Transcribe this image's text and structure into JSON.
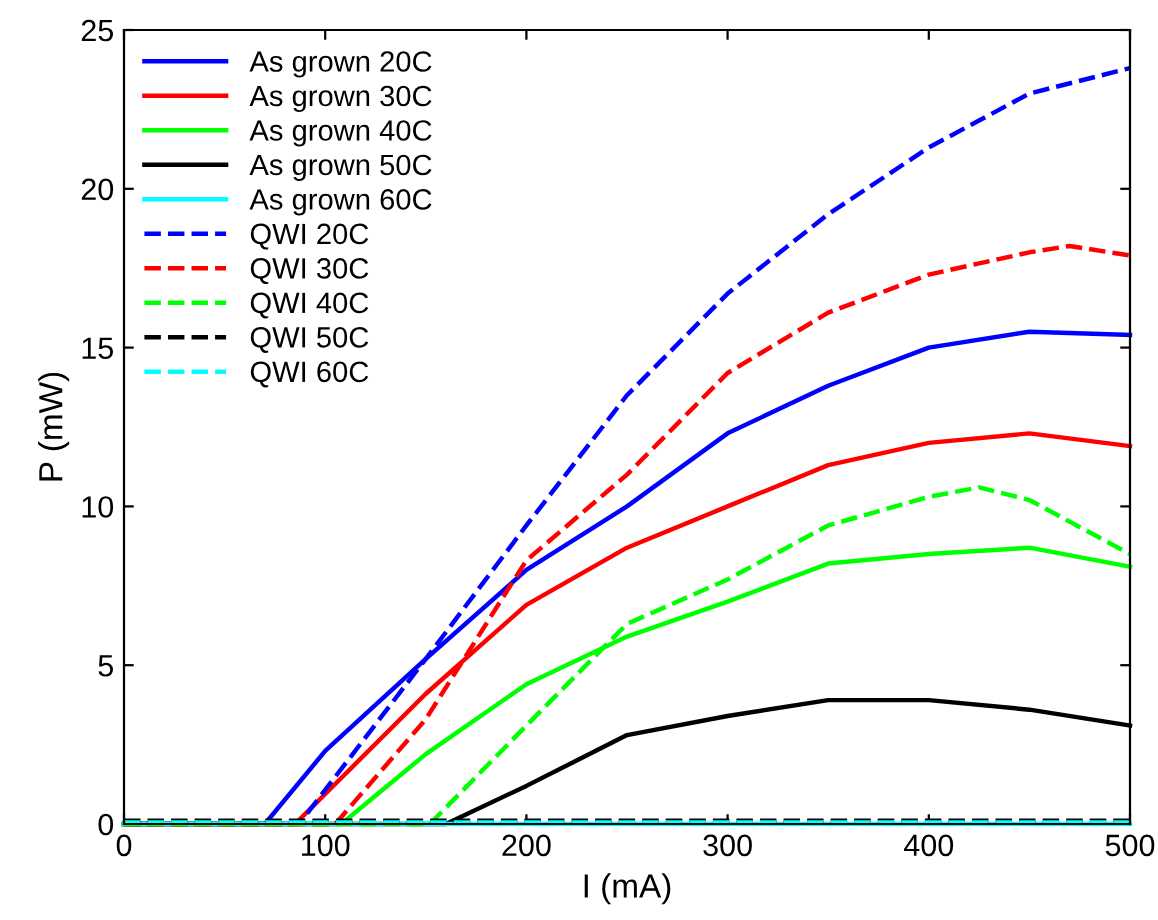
{
  "chart_data": {
    "type": "line",
    "xlabel": "I (mA)",
    "ylabel": "P (mW)",
    "xlim": [
      0,
      500
    ],
    "ylim": [
      0,
      25
    ],
    "xticks": [
      0,
      100,
      200,
      300,
      400,
      500
    ],
    "yticks": [
      0,
      5,
      10,
      15,
      20,
      25
    ],
    "grid": false,
    "legend": "top left",
    "series": [
      {
        "name": "As grown 20C",
        "color": "#0000ff",
        "line_style": "solid",
        "x": [
          0,
          70,
          100,
          150,
          200,
          250,
          300,
          350,
          400,
          450,
          500
        ],
        "values": [
          0,
          0,
          2.3,
          5.2,
          8.0,
          10.0,
          12.3,
          13.8,
          15.0,
          15.5,
          15.4
        ]
      },
      {
        "name": "As grown 30C",
        "color": "#ff0000",
        "line_style": "solid",
        "x": [
          0,
          85,
          150,
          200,
          250,
          300,
          350,
          400,
          450,
          500
        ],
        "values": [
          0,
          0,
          4.1,
          6.9,
          8.7,
          10.0,
          11.3,
          12.0,
          12.3,
          11.9
        ]
      },
      {
        "name": "As grown 40C",
        "color": "#00ff00",
        "line_style": "solid",
        "x": [
          0,
          108,
          150,
          200,
          250,
          300,
          350,
          400,
          450,
          500
        ],
        "values": [
          0,
          0,
          2.2,
          4.4,
          5.9,
          7.0,
          8.2,
          8.5,
          8.7,
          8.1
        ]
      },
      {
        "name": "As grown 50C",
        "color": "#000000",
        "line_style": "solid",
        "x": [
          0,
          160,
          200,
          250,
          300,
          350,
          400,
          450,
          500
        ],
        "values": [
          0,
          0,
          1.2,
          2.8,
          3.4,
          3.9,
          3.9,
          3.6,
          3.1
        ]
      },
      {
        "name": "As grown 60C",
        "color": "#00ffff",
        "line_style": "solid",
        "x": [
          0,
          500
        ],
        "values": [
          0,
          0
        ]
      },
      {
        "name": "QWI 20C",
        "color": "#0000ff",
        "line_style": "dashed",
        "x": [
          0,
          87,
          150,
          200,
          250,
          300,
          350,
          400,
          450,
          500
        ],
        "values": [
          0,
          0,
          5.2,
          9.4,
          13.5,
          16.7,
          19.2,
          21.3,
          23.0,
          23.8
        ]
      },
      {
        "name": "QWI 30C",
        "color": "#ff0000",
        "line_style": "dashed",
        "x": [
          0,
          105,
          150,
          200,
          250,
          300,
          350,
          400,
          450,
          470,
          500
        ],
        "values": [
          0,
          0,
          3.3,
          8.3,
          11.0,
          14.2,
          16.1,
          17.3,
          18.0,
          18.2,
          17.9
        ]
      },
      {
        "name": "QWI 40C",
        "color": "#00ff00",
        "line_style": "dashed",
        "x": [
          0,
          152,
          200,
          250,
          300,
          350,
          400,
          425,
          450,
          500
        ],
        "values": [
          0,
          0,
          3.1,
          6.3,
          7.7,
          9.4,
          10.3,
          10.6,
          10.2,
          8.5
        ]
      },
      {
        "name": "QWI 50C",
        "color": "#000000",
        "line_style": "dashed",
        "x": [
          0,
          500
        ],
        "values": [
          0.1,
          0.1
        ]
      },
      {
        "name": "QWI 60C",
        "color": "#00ffff",
        "line_style": "dashed",
        "x": [
          0,
          500
        ],
        "values": [
          0.05,
          0.05
        ]
      }
    ]
  }
}
